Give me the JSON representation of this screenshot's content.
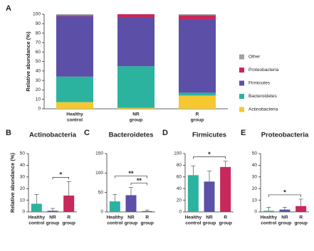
{
  "chart_data": [
    {
      "type": "stacked_bar",
      "panel": "A",
      "ylabel": "Relative abundance (%)",
      "categories": [
        [
          "Healthy",
          "control"
        ],
        [
          "NR",
          "group"
        ],
        [
          "R",
          "group"
        ]
      ],
      "ylim": [
        0,
        100
      ],
      "yticks": [
        0,
        10,
        20,
        30,
        40,
        50,
        60,
        70,
        80,
        90,
        100
      ],
      "series": [
        {
          "name": "Actinobacteria",
          "color": "#f5c832",
          "values": [
            7,
            1,
            14
          ]
        },
        {
          "name": "Bacteroidetes",
          "color": "#2bb3a0",
          "values": [
            27,
            44,
            3
          ]
        },
        {
          "name": "Firmicutes",
          "color": "#5b4fa8",
          "values": [
            64,
            52,
            77
          ]
        },
        {
          "name": "Proteobacteria",
          "color": "#c8285a",
          "values": [
            1,
            3,
            5
          ]
        },
        {
          "name": "Other",
          "color": "#a0a0a0",
          "values": [
            1,
            0,
            1
          ]
        }
      ]
    },
    {
      "type": "bar",
      "panel": "B",
      "title": "Actinobacteria",
      "ylabel": "Relative abundance (%)",
      "categories": [
        [
          "Healthy",
          "control"
        ],
        [
          "NR",
          "group"
        ],
        [
          "R",
          "group"
        ]
      ],
      "colors": [
        "#2bb3a0",
        "#5b4fa8",
        "#c8285a"
      ],
      "values": [
        7,
        1,
        14
      ],
      "errors": [
        8,
        2,
        12
      ],
      "ylim": [
        0,
        50
      ],
      "yticks": [
        0,
        10,
        20,
        30,
        40,
        50
      ],
      "annotations": [
        {
          "label": "*",
          "between": [
            1,
            2
          ]
        }
      ]
    },
    {
      "type": "bar",
      "panel": "C",
      "title": "Bacteroidetes",
      "categories": [
        [
          "Healthy",
          "control"
        ],
        [
          "NR",
          "group"
        ],
        [
          "R",
          "group"
        ]
      ],
      "colors": [
        "#2bb3a0",
        "#5b4fa8",
        "#c8285a"
      ],
      "values": [
        27,
        43,
        2
      ],
      "errors": [
        18,
        20,
        3
      ],
      "ylim": [
        0,
        150
      ],
      "yticks": [
        0,
        50,
        100,
        150
      ],
      "annotations": [
        {
          "label": "**",
          "between": [
            0,
            2
          ]
        },
        {
          "label": "**",
          "between": [
            1,
            2
          ]
        }
      ]
    },
    {
      "type": "bar",
      "panel": "D",
      "title": "Firmicutes",
      "categories": [
        [
          "Healthy",
          "control"
        ],
        [
          "NR",
          "group"
        ],
        [
          "R",
          "group"
        ]
      ],
      "colors": [
        "#2bb3a0",
        "#5b4fa8",
        "#c8285a"
      ],
      "values": [
        63,
        52,
        77
      ],
      "errors": [
        16,
        18,
        10
      ],
      "ylim": [
        0,
        100
      ],
      "yticks": [
        0,
        20,
        40,
        60,
        80,
        100
      ],
      "annotations": [
        {
          "label": "*",
          "between": [
            0,
            2
          ]
        }
      ]
    },
    {
      "type": "bar",
      "panel": "E",
      "title": "Proteobacteria",
      "categories": [
        [
          "Healthy",
          "control"
        ],
        [
          "NR",
          "group"
        ],
        [
          "R",
          "group"
        ]
      ],
      "colors": [
        "#2bb3a0",
        "#5b4fa8",
        "#c8285a"
      ],
      "values": [
        1,
        2,
        5
      ],
      "errors": [
        3,
        2,
        6
      ],
      "ylim": [
        0,
        50
      ],
      "yticks": [
        0,
        10,
        20,
        30,
        40,
        50
      ],
      "annotations": [
        {
          "label": "*",
          "between": [
            0,
            2
          ]
        }
      ]
    }
  ]
}
